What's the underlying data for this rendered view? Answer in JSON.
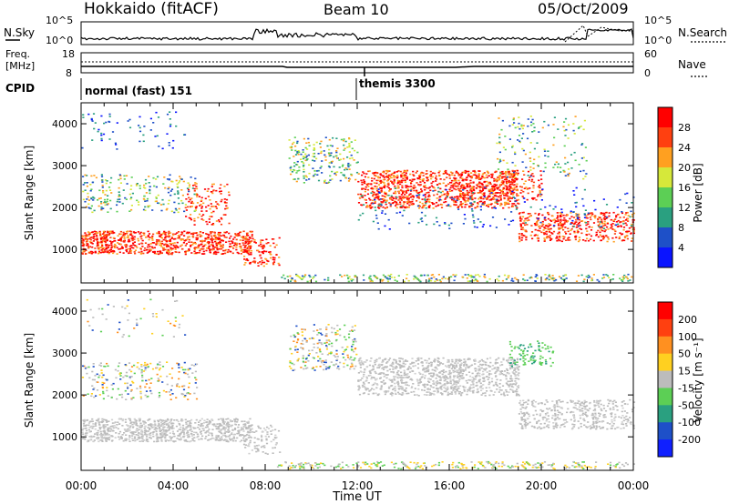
{
  "header": {
    "station": "Hokkaido (fitACF)",
    "beam": "Beam 10",
    "date": "05/Oct/2009"
  },
  "top_panels": {
    "nsky_label": "N.Sky",
    "nsearch_label": "N.Search",
    "nsky_ticks": [
      "10^5",
      "10^0"
    ],
    "nsearch_ticks": [
      "10^5",
      "10^0"
    ],
    "freq_label_1": "Freq.",
    "freq_label_2": "[MHz]",
    "freq_ticks": [
      "18",
      "8"
    ],
    "nave_label": "Nave",
    "nave_ticks": [
      "60",
      "0"
    ],
    "cpid_label": "CPID",
    "cpid_segments": [
      {
        "label": "normal (fast) 151",
        "start_hour": 0
      },
      {
        "label": "themis 3300",
        "start_hour": 12
      }
    ]
  },
  "chart_data": [
    {
      "type": "heatmap",
      "title": "Power",
      "xlabel": "Time UT",
      "ylabel": "Slant Range [km]",
      "x_ticks": [
        "00:00",
        "04:00",
        "08:00",
        "12:00",
        "16:00",
        "20:00",
        "00:00"
      ],
      "xlim_hours": [
        0,
        24
      ],
      "y_ticks": [
        1000,
        2000,
        3000,
        4000
      ],
      "ylim": [
        200,
        4500
      ],
      "colorbar_label": "Power [dB]",
      "colorbar_ticks": [
        4,
        8,
        12,
        16,
        20,
        24,
        28
      ],
      "colorbar_colors": [
        "#0a14ff",
        "#1e50c8",
        "#2aa080",
        "#5ccf55",
        "#d6e83a",
        "#ffa020",
        "#ff4010",
        "#ff0000"
      ]
    },
    {
      "type": "heatmap",
      "title": "Velocity",
      "xlabel": "Time UT",
      "ylabel": "Slant Range [km]",
      "x_ticks": [
        "00:00",
        "04:00",
        "08:00",
        "12:00",
        "16:00",
        "20:00",
        "00:00"
      ],
      "xlim_hours": [
        0,
        24
      ],
      "y_ticks": [
        1000,
        2000,
        3000,
        4000
      ],
      "ylim": [
        200,
        4500
      ],
      "colorbar_label": "Velocity [m s⁻¹]",
      "colorbar_ticks": [
        200,
        100,
        50,
        15,
        -15,
        -50,
        -100,
        -200
      ],
      "colorbar_colors": [
        "#1020ff",
        "#1e50c8",
        "#2aa080",
        "#5ccf55",
        "#bcbcbc",
        "#ffd020",
        "#ff9020",
        "#ff4010",
        "#ff0000"
      ]
    }
  ]
}
